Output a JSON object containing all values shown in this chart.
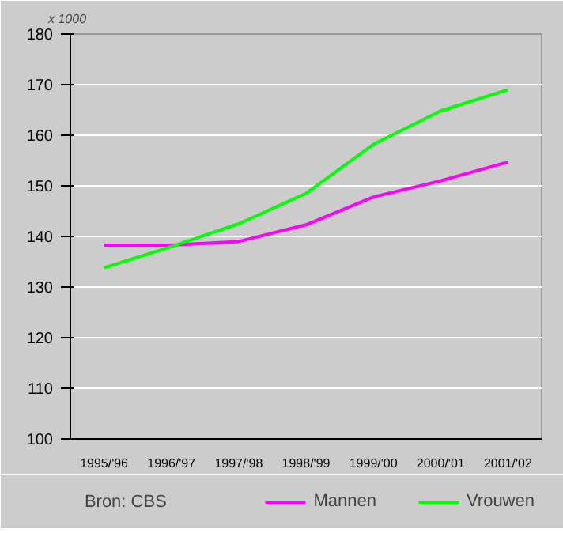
{
  "chart_data": {
    "type": "line",
    "ylabel": "x 1000",
    "categories": [
      "1995/'96",
      "1996/'97",
      "1997/'98",
      "1998/'99",
      "1999/'00",
      "2000/'01",
      "2001/'02"
    ],
    "series": [
      {
        "name": "Mannen",
        "color": "#ff00ff",
        "values": [
          138.3,
          138.3,
          139,
          142.3,
          147.8,
          151,
          154.7
        ]
      },
      {
        "name": "Vrouwen",
        "color": "#00ff00",
        "values": [
          133.8,
          138,
          142.5,
          148.5,
          158.2,
          164.8,
          169
        ]
      }
    ],
    "ylim": [
      100,
      180
    ],
    "yticks": [
      100,
      110,
      120,
      130,
      140,
      150,
      160,
      170,
      180
    ],
    "grid": "y",
    "legend": "bottom",
    "marker": "none",
    "line_style": "solid",
    "annotations": [
      "Bron: CBS"
    ]
  }
}
